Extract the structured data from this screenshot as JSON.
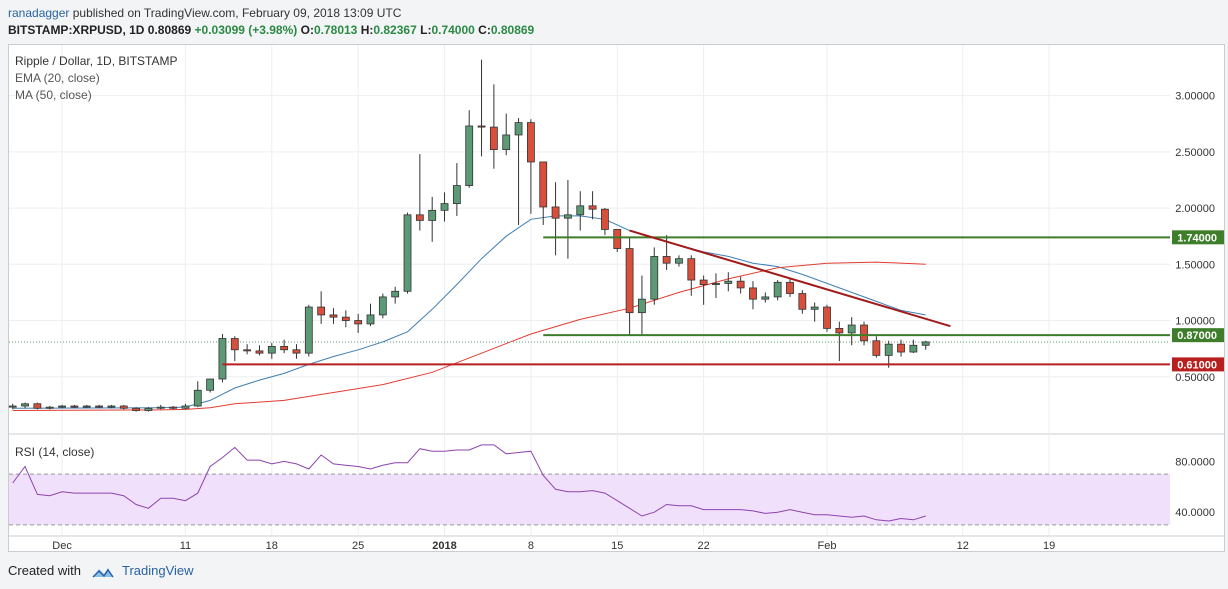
{
  "header": {
    "publisher": "ranadagger",
    "published_text": "published on TradingView.com, February 09, 2018 13:09 UTC",
    "symbol_line": "BITSTAMP:XRPUSD, 1D",
    "last": "0.80869",
    "change": "+0.03099 (+3.98%)",
    "o_label": "O:",
    "o_value": "0.78013",
    "h_label": "H:",
    "h_value": "0.82367",
    "l_label": "L:",
    "l_value": "0.74000",
    "c_label": "C:",
    "c_value": "0.80869"
  },
  "footer": {
    "created_with": "Created with",
    "brand": "TradingView"
  },
  "colors": {
    "up": "#5b9a74",
    "down": "#d8503c",
    "ema": "#3f7fb5",
    "ma": "#e23c32",
    "support_green": "#3e7d2a",
    "support_red": "#b81f1f",
    "trend": "#a11b1b",
    "rsi_line": "#8e44ad",
    "rsi_band": "#f0e0fb"
  },
  "chart_data": {
    "type": "candlestick",
    "title": "Ripple / Dollar, 1D, BITSTAMP",
    "indicators": [
      "EMA (20, close)",
      "MA (50, close)"
    ],
    "y_ticks": [
      0.5,
      1.0,
      1.5,
      2.0,
      2.5,
      3.0
    ],
    "y_tick_labels": [
      "0.50000",
      "1.00000",
      "1.50000",
      "2.00000",
      "2.50000",
      "3.00000"
    ],
    "ylim": [
      0.0,
      3.45
    ],
    "x_tick_labels": [
      {
        "day": 0,
        "label": "Dec"
      },
      {
        "day": 10,
        "label": "11"
      },
      {
        "day": 17,
        "label": "18"
      },
      {
        "day": 24,
        "label": "25"
      },
      {
        "day": 31,
        "label": "2018"
      },
      {
        "day": 38,
        "label": "8"
      },
      {
        "day": 45,
        "label": "15"
      },
      {
        "day": 52,
        "label": "22"
      },
      {
        "day": 62,
        "label": "Feb"
      },
      {
        "day": 73,
        "label": "12"
      },
      {
        "day": 80,
        "label": "19"
      }
    ],
    "x_range": [
      -4.3,
      89.8
    ],
    "candles": [
      {
        "d": -4,
        "o": 0.23,
        "h": 0.26,
        "l": 0.21,
        "c": 0.24
      },
      {
        "d": -3,
        "o": 0.24,
        "h": 0.27,
        "l": 0.22,
        "c": 0.26
      },
      {
        "d": -2,
        "o": 0.26,
        "h": 0.27,
        "l": 0.21,
        "c": 0.22
      },
      {
        "d": -1,
        "o": 0.22,
        "h": 0.24,
        "l": 0.21,
        "c": 0.23
      },
      {
        "d": 0,
        "o": 0.23,
        "h": 0.25,
        "l": 0.22,
        "c": 0.24
      },
      {
        "d": 1,
        "o": 0.24,
        "h": 0.25,
        "l": 0.22,
        "c": 0.23
      },
      {
        "d": 2,
        "o": 0.23,
        "h": 0.25,
        "l": 0.22,
        "c": 0.24
      },
      {
        "d": 3,
        "o": 0.24,
        "h": 0.25,
        "l": 0.22,
        "c": 0.23
      },
      {
        "d": 4,
        "o": 0.23,
        "h": 0.25,
        "l": 0.22,
        "c": 0.24
      },
      {
        "d": 5,
        "o": 0.24,
        "h": 0.25,
        "l": 0.21,
        "c": 0.22
      },
      {
        "d": 6,
        "o": 0.22,
        "h": 0.23,
        "l": 0.19,
        "c": 0.2
      },
      {
        "d": 7,
        "o": 0.2,
        "h": 0.23,
        "l": 0.19,
        "c": 0.22
      },
      {
        "d": 8,
        "o": 0.22,
        "h": 0.25,
        "l": 0.21,
        "c": 0.23
      },
      {
        "d": 9,
        "o": 0.23,
        "h": 0.24,
        "l": 0.21,
        "c": 0.22
      },
      {
        "d": 10,
        "o": 0.22,
        "h": 0.26,
        "l": 0.21,
        "c": 0.24
      },
      {
        "d": 11,
        "o": 0.24,
        "h": 0.46,
        "l": 0.23,
        "c": 0.38
      },
      {
        "d": 12,
        "o": 0.38,
        "h": 0.48,
        "l": 0.36,
        "c": 0.48
      },
      {
        "d": 13,
        "o": 0.48,
        "h": 0.88,
        "l": 0.45,
        "c": 0.84
      },
      {
        "d": 14,
        "o": 0.84,
        "h": 0.86,
        "l": 0.64,
        "c": 0.74
      },
      {
        "d": 15,
        "o": 0.74,
        "h": 0.79,
        "l": 0.7,
        "c": 0.73
      },
      {
        "d": 16,
        "o": 0.73,
        "h": 0.78,
        "l": 0.69,
        "c": 0.71
      },
      {
        "d": 17,
        "o": 0.71,
        "h": 0.8,
        "l": 0.66,
        "c": 0.77
      },
      {
        "d": 18,
        "o": 0.77,
        "h": 0.83,
        "l": 0.71,
        "c": 0.74
      },
      {
        "d": 19,
        "o": 0.74,
        "h": 0.79,
        "l": 0.66,
        "c": 0.71
      },
      {
        "d": 20,
        "o": 0.71,
        "h": 1.14,
        "l": 0.68,
        "c": 1.12
      },
      {
        "d": 21,
        "o": 1.12,
        "h": 1.26,
        "l": 0.97,
        "c": 1.05
      },
      {
        "d": 22,
        "o": 1.05,
        "h": 1.11,
        "l": 0.97,
        "c": 1.03
      },
      {
        "d": 23,
        "o": 1.03,
        "h": 1.09,
        "l": 0.94,
        "c": 1.0
      },
      {
        "d": 24,
        "o": 1.0,
        "h": 1.06,
        "l": 0.89,
        "c": 0.97
      },
      {
        "d": 25,
        "o": 0.97,
        "h": 1.15,
        "l": 0.95,
        "c": 1.05
      },
      {
        "d": 26,
        "o": 1.05,
        "h": 1.24,
        "l": 1.02,
        "c": 1.21
      },
      {
        "d": 27,
        "o": 1.21,
        "h": 1.3,
        "l": 1.15,
        "c": 1.26
      },
      {
        "d": 28,
        "o": 1.26,
        "h": 1.96,
        "l": 1.24,
        "c": 1.94
      },
      {
        "d": 29,
        "o": 1.94,
        "h": 2.48,
        "l": 1.8,
        "c": 1.89
      },
      {
        "d": 30,
        "o": 1.89,
        "h": 2.1,
        "l": 1.7,
        "c": 1.98
      },
      {
        "d": 31,
        "o": 1.98,
        "h": 2.14,
        "l": 1.88,
        "c": 2.04
      },
      {
        "d": 32,
        "o": 2.04,
        "h": 2.4,
        "l": 1.93,
        "c": 2.2
      },
      {
        "d": 33,
        "o": 2.2,
        "h": 2.87,
        "l": 2.18,
        "c": 2.73
      },
      {
        "d": 34,
        "o": 2.73,
        "h": 3.32,
        "l": 2.46,
        "c": 2.72
      },
      {
        "d": 35,
        "o": 2.72,
        "h": 3.1,
        "l": 2.35,
        "c": 2.52
      },
      {
        "d": 36,
        "o": 2.52,
        "h": 2.84,
        "l": 2.47,
        "c": 2.65
      },
      {
        "d": 37,
        "o": 2.65,
        "h": 2.8,
        "l": 1.85,
        "c": 2.76
      },
      {
        "d": 38,
        "o": 2.76,
        "h": 2.79,
        "l": 1.95,
        "c": 2.41
      },
      {
        "d": 39,
        "o": 2.41,
        "h": 2.41,
        "l": 1.85,
        "c": 2.01
      },
      {
        "d": 40,
        "o": 2.01,
        "h": 2.23,
        "l": 1.58,
        "c": 1.91
      },
      {
        "d": 41,
        "o": 1.91,
        "h": 2.25,
        "l": 1.55,
        "c": 1.94
      },
      {
        "d": 42,
        "o": 1.94,
        "h": 2.15,
        "l": 1.8,
        "c": 2.02
      },
      {
        "d": 43,
        "o": 2.02,
        "h": 2.15,
        "l": 1.9,
        "c": 1.99
      },
      {
        "d": 44,
        "o": 1.99,
        "h": 2.0,
        "l": 1.76,
        "c": 1.81
      },
      {
        "d": 45,
        "o": 1.81,
        "h": 1.81,
        "l": 1.61,
        "c": 1.64
      },
      {
        "d": 46,
        "o": 1.64,
        "h": 1.74,
        "l": 0.87,
        "c": 1.07
      },
      {
        "d": 47,
        "o": 1.07,
        "h": 1.4,
        "l": 0.87,
        "c": 1.19
      },
      {
        "d": 48,
        "o": 1.19,
        "h": 1.65,
        "l": 1.14,
        "c": 1.57
      },
      {
        "d": 49,
        "o": 1.57,
        "h": 1.76,
        "l": 1.45,
        "c": 1.51
      },
      {
        "d": 50,
        "o": 1.51,
        "h": 1.58,
        "l": 1.48,
        "c": 1.55
      },
      {
        "d": 51,
        "o": 1.55,
        "h": 1.58,
        "l": 1.22,
        "c": 1.36
      },
      {
        "d": 52,
        "o": 1.36,
        "h": 1.4,
        "l": 1.14,
        "c": 1.32
      },
      {
        "d": 53,
        "o": 1.32,
        "h": 1.42,
        "l": 1.2,
        "c": 1.33
      },
      {
        "d": 54,
        "o": 1.33,
        "h": 1.43,
        "l": 1.26,
        "c": 1.35
      },
      {
        "d": 55,
        "o": 1.35,
        "h": 1.39,
        "l": 1.24,
        "c": 1.29
      },
      {
        "d": 56,
        "o": 1.29,
        "h": 1.35,
        "l": 1.1,
        "c": 1.19
      },
      {
        "d": 57,
        "o": 1.19,
        "h": 1.25,
        "l": 1.16,
        "c": 1.21
      },
      {
        "d": 58,
        "o": 1.21,
        "h": 1.36,
        "l": 1.18,
        "c": 1.34
      },
      {
        "d": 59,
        "o": 1.34,
        "h": 1.37,
        "l": 1.21,
        "c": 1.24
      },
      {
        "d": 60,
        "o": 1.24,
        "h": 1.27,
        "l": 1.06,
        "c": 1.1
      },
      {
        "d": 61,
        "o": 1.1,
        "h": 1.16,
        "l": 0.99,
        "c": 1.12
      },
      {
        "d": 62,
        "o": 1.12,
        "h": 1.14,
        "l": 0.9,
        "c": 0.93
      },
      {
        "d": 63,
        "o": 0.93,
        "h": 0.99,
        "l": 0.64,
        "c": 0.89
      },
      {
        "d": 64,
        "o": 0.89,
        "h": 1.03,
        "l": 0.78,
        "c": 0.96
      },
      {
        "d": 65,
        "o": 0.96,
        "h": 0.99,
        "l": 0.78,
        "c": 0.82
      },
      {
        "d": 66,
        "o": 0.82,
        "h": 0.86,
        "l": 0.67,
        "c": 0.69
      },
      {
        "d": 67,
        "o": 0.69,
        "h": 0.82,
        "l": 0.58,
        "c": 0.79
      },
      {
        "d": 68,
        "o": 0.79,
        "h": 0.83,
        "l": 0.68,
        "c": 0.72
      },
      {
        "d": 69,
        "o": 0.72,
        "h": 0.83,
        "l": 0.71,
        "c": 0.78
      },
      {
        "d": 70,
        "o": 0.78,
        "h": 0.82,
        "l": 0.74,
        "c": 0.81
      }
    ],
    "ema20": [
      [
        -4,
        0.22
      ],
      [
        8,
        0.225
      ],
      [
        10,
        0.23
      ],
      [
        12,
        0.29
      ],
      [
        14,
        0.4
      ],
      [
        16,
        0.47
      ],
      [
        18,
        0.53
      ],
      [
        20,
        0.61
      ],
      [
        22,
        0.68
      ],
      [
        24,
        0.74
      ],
      [
        26,
        0.81
      ],
      [
        28,
        0.9
      ],
      [
        30,
        1.1
      ],
      [
        32,
        1.32
      ],
      [
        34,
        1.55
      ],
      [
        36,
        1.75
      ],
      [
        38,
        1.9
      ],
      [
        40,
        1.93
      ],
      [
        42,
        1.93
      ],
      [
        44,
        1.9
      ],
      [
        46,
        1.8
      ],
      [
        48,
        1.73
      ],
      [
        50,
        1.67
      ],
      [
        52,
        1.61
      ],
      [
        54,
        1.57
      ],
      [
        56,
        1.51
      ],
      [
        58,
        1.48
      ],
      [
        60,
        1.41
      ],
      [
        62,
        1.33
      ],
      [
        64,
        1.25
      ],
      [
        66,
        1.17
      ],
      [
        68,
        1.09
      ],
      [
        70,
        1.05
      ]
    ],
    "ma50": [
      [
        -4,
        0.2
      ],
      [
        8,
        0.205
      ],
      [
        10,
        0.21
      ],
      [
        12,
        0.225
      ],
      [
        14,
        0.26
      ],
      [
        18,
        0.29
      ],
      [
        22,
        0.36
      ],
      [
        26,
        0.43
      ],
      [
        30,
        0.54
      ],
      [
        34,
        0.71
      ],
      [
        38,
        0.88
      ],
      [
        42,
        1.01
      ],
      [
        46,
        1.11
      ],
      [
        50,
        1.25
      ],
      [
        54,
        1.37
      ],
      [
        58,
        1.47
      ],
      [
        62,
        1.51
      ],
      [
        66,
        1.52
      ],
      [
        70,
        1.5
      ]
    ],
    "support_lines": [
      {
        "start": 39,
        "value": 1.74,
        "label": "1.74000",
        "color": "green"
      },
      {
        "start": 39,
        "value": 0.87,
        "label": "0.87000",
        "color": "green"
      },
      {
        "start": 13,
        "value": 0.61,
        "label": "0.61000",
        "color": "red"
      }
    ],
    "trendline": {
      "x1": 46,
      "y1": 1.8,
      "x2": 72,
      "y2": 0.95
    },
    "last_price_line": 0.80869,
    "rsi": {
      "label": "RSI (14, close)",
      "ticks": [
        40,
        80
      ],
      "tick_labels": [
        "40.0000",
        "80.0000"
      ],
      "band": [
        30,
        70
      ],
      "ylim": [
        22,
        100
      ],
      "values": [
        [
          -4,
          63
        ],
        [
          -3,
          76
        ],
        [
          -2,
          54
        ],
        [
          -1,
          53
        ],
        [
          0,
          56
        ],
        [
          1,
          55
        ],
        [
          2,
          55
        ],
        [
          3,
          55
        ],
        [
          4,
          55
        ],
        [
          5,
          53
        ],
        [
          6,
          46
        ],
        [
          7,
          43
        ],
        [
          8,
          51
        ],
        [
          9,
          51
        ],
        [
          10,
          49
        ],
        [
          11,
          55
        ],
        [
          12,
          76
        ],
        [
          13,
          83
        ],
        [
          14,
          91
        ],
        [
          15,
          81
        ],
        [
          16,
          81
        ],
        [
          17,
          78
        ],
        [
          18,
          80
        ],
        [
          19,
          78
        ],
        [
          20,
          74
        ],
        [
          21,
          85
        ],
        [
          22,
          78
        ],
        [
          23,
          77
        ],
        [
          24,
          76
        ],
        [
          25,
          74
        ],
        [
          26,
          77
        ],
        [
          27,
          79
        ],
        [
          28,
          79
        ],
        [
          29,
          90
        ],
        [
          30,
          88
        ],
        [
          31,
          88
        ],
        [
          32,
          89
        ],
        [
          33,
          89
        ],
        [
          34,
          93
        ],
        [
          35,
          93
        ],
        [
          36,
          86
        ],
        [
          37,
          87
        ],
        [
          38,
          88
        ],
        [
          39,
          69
        ],
        [
          40,
          58
        ],
        [
          41,
          56
        ],
        [
          42,
          56
        ],
        [
          43,
          57
        ],
        [
          44,
          55
        ],
        [
          45,
          49
        ],
        [
          46,
          43
        ],
        [
          47,
          37
        ],
        [
          48,
          40
        ],
        [
          49,
          46
        ],
        [
          50,
          45
        ],
        [
          51,
          45
        ],
        [
          52,
          42
        ],
        [
          53,
          42
        ],
        [
          54,
          42
        ],
        [
          55,
          42
        ],
        [
          56,
          41
        ],
        [
          57,
          39
        ],
        [
          58,
          40
        ],
        [
          59,
          42
        ],
        [
          60,
          40
        ],
        [
          61,
          38
        ],
        [
          62,
          38
        ],
        [
          63,
          37
        ],
        [
          64,
          36
        ],
        [
          65,
          37
        ],
        [
          66,
          34
        ],
        [
          67,
          33
        ],
        [
          68,
          35
        ],
        [
          69,
          34
        ],
        [
          70,
          37
        ]
      ]
    }
  }
}
